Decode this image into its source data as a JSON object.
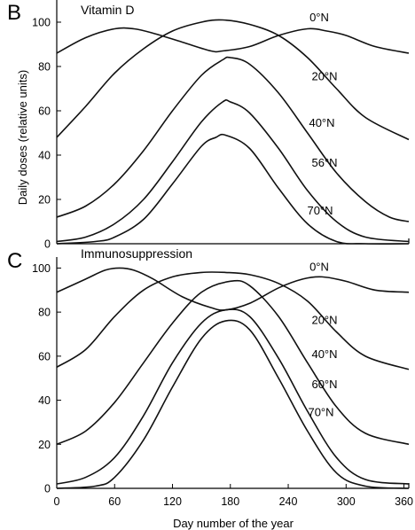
{
  "chart_data": [
    {
      "type": "line",
      "panel_letter": "B",
      "title": "Vitamin D",
      "xlabel": "",
      "ylabel": "Daily doses (relative units)",
      "xlim": [
        0,
        365
      ],
      "ylim": [
        0,
        110
      ],
      "xticks": [],
      "yticks": [
        0,
        20,
        40,
        60,
        80,
        100
      ],
      "grid": false,
      "series": [
        {
          "name": "0°N",
          "x": [
            0,
            30,
            60,
            80,
            100,
            130,
            160,
            172,
            200,
            230,
            260,
            280,
            300,
            330,
            365
          ],
          "y": [
            86,
            93,
            97,
            97,
            95,
            91,
            87,
            87,
            89,
            94,
            97,
            96,
            94,
            89,
            86
          ]
        },
        {
          "name": "20°N",
          "x": [
            0,
            30,
            60,
            90,
            120,
            150,
            172,
            200,
            230,
            260,
            290,
            320,
            365
          ],
          "y": [
            48,
            62,
            77,
            88,
            96,
            100,
            101,
            99,
            94,
            84,
            70,
            57,
            47
          ]
        },
        {
          "name": "40°N",
          "x": [
            0,
            30,
            60,
            90,
            120,
            150,
            172,
            180,
            200,
            230,
            260,
            290,
            320,
            345,
            365
          ],
          "y": [
            12,
            17,
            27,
            42,
            60,
            76,
            83,
            84,
            81,
            68,
            50,
            32,
            19,
            12,
            10
          ]
        },
        {
          "name": "56°N",
          "x": [
            0,
            30,
            60,
            90,
            120,
            150,
            172,
            180,
            200,
            230,
            260,
            290,
            320,
            365
          ],
          "y": [
            1,
            3,
            9,
            20,
            37,
            55,
            64,
            64,
            59,
            43,
            24,
            10,
            3,
            1
          ]
        },
        {
          "name": "70°N",
          "x": [
            0,
            40,
            60,
            90,
            120,
            150,
            165,
            175,
            200,
            230,
            260,
            290,
            320,
            365
          ],
          "y": [
            0,
            1,
            3,
            11,
            27,
            44,
            48,
            49,
            43,
            25,
            9,
            1,
            0,
            0
          ]
        }
      ]
    },
    {
      "type": "line",
      "panel_letter": "C",
      "title": "Immunosuppression",
      "xlabel": "Day number of the year",
      "ylabel": "",
      "xlim": [
        0,
        365
      ],
      "ylim": [
        0,
        105
      ],
      "xticks": [
        0,
        60,
        120,
        180,
        240,
        300,
        360
      ],
      "yticks": [
        0,
        20,
        40,
        60,
        80,
        100
      ],
      "grid": false,
      "series": [
        {
          "name": "0°N",
          "x": [
            0,
            30,
            50,
            65,
            80,
            100,
            130,
            160,
            175,
            200,
            230,
            255,
            275,
            300,
            330,
            365
          ],
          "y": [
            89,
            95,
            99,
            100,
            99,
            95,
            87,
            82,
            81,
            84,
            91,
            95,
            96,
            94,
            90,
            89
          ]
        },
        {
          "name": "20°N",
          "x": [
            0,
            30,
            60,
            90,
            120,
            150,
            175,
            200,
            230,
            260,
            290,
            320,
            365
          ],
          "y": [
            55,
            63,
            78,
            90,
            96,
            98,
            98,
            97,
            93,
            85,
            71,
            60,
            54
          ]
        },
        {
          "name": "40°N",
          "x": [
            0,
            30,
            60,
            90,
            120,
            150,
            180,
            200,
            230,
            260,
            290,
            320,
            365
          ],
          "y": [
            20,
            26,
            39,
            57,
            75,
            89,
            94,
            92,
            78,
            57,
            37,
            25,
            20
          ]
        },
        {
          "name": "60°N",
          "x": [
            0,
            30,
            60,
            90,
            120,
            150,
            175,
            200,
            230,
            260,
            290,
            320,
            365
          ],
          "y": [
            2,
            5,
            14,
            33,
            57,
            75,
            81,
            78,
            59,
            35,
            14,
            4,
            2
          ]
        },
        {
          "name": "70°N",
          "x": [
            0,
            40,
            60,
            90,
            120,
            150,
            175,
            200,
            230,
            260,
            290,
            320,
            365
          ],
          "y": [
            0,
            1,
            5,
            22,
            46,
            68,
            76,
            72,
            50,
            26,
            7,
            1,
            0
          ]
        }
      ]
    }
  ]
}
